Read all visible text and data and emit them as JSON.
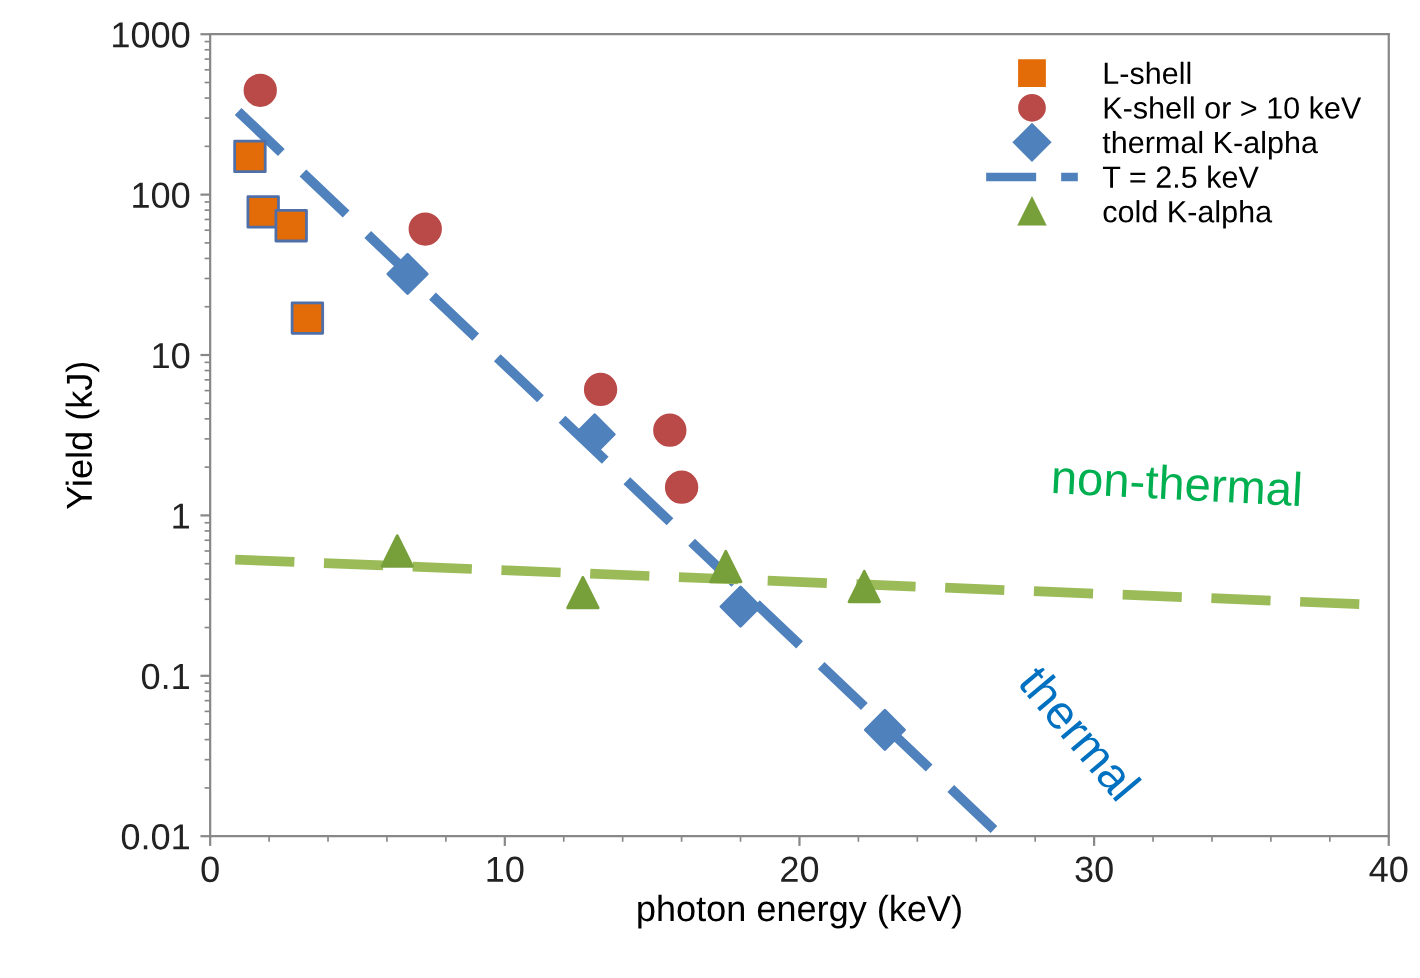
{
  "chart_data": {
    "type": "scatter",
    "xlabel": "photon energy (keV)",
    "ylabel": "Yield (kJ)",
    "log": "y",
    "xlim": [
      0,
      40
    ],
    "ylim": [
      0.01,
      1000
    ],
    "xticks": [
      0,
      10,
      20,
      30,
      40
    ],
    "yticks": [
      0.01,
      0.1,
      1,
      10,
      100,
      1000
    ],
    "grid": false,
    "legend": "top right",
    "series": [
      {
        "name": "L-shell",
        "marker": "square",
        "color": "#e36c09",
        "x": [
          1.35,
          1.8,
          2.75,
          3.3
        ],
        "values": [
          173,
          78,
          64,
          17
        ]
      },
      {
        "name": "K-shell or > 10 keV",
        "marker": "circle",
        "color": "#b94a48",
        "x": [
          1.7,
          7.3,
          13.25,
          15.6,
          16.0
        ],
        "values": [
          447,
          61,
          6.1,
          3.4,
          1.5
        ]
      },
      {
        "name": "thermal K-alpha",
        "marker": "diamond",
        "color": "#4f81bd",
        "x": [
          6.7,
          13.05,
          18.0,
          22.9
        ],
        "values": [
          32,
          3.2,
          0.27,
          0.046
        ]
      },
      {
        "name": "T = 2.5 keV",
        "type": "line",
        "line_style": "dashed",
        "marker": "none",
        "color": "#4f81bd",
        "x": [
          0.95,
          26.6
        ],
        "values": [
          330,
          0.011
        ]
      },
      {
        "name": "cold K-alpha",
        "marker": "triangle",
        "color": "#77a03b",
        "x": [
          6.35,
          12.65,
          17.5,
          22.2
        ],
        "values": [
          0.6,
          0.33,
          0.48,
          0.36
        ]
      },
      {
        "type": "line",
        "line_style": "dashed",
        "marker": "none",
        "color": "#9bbb59",
        "x": [
          0.85,
          39
        ],
        "values": [
          0.53,
          0.28
        ]
      }
    ],
    "annotations": [
      "non-thermal",
      "thermal"
    ]
  }
}
